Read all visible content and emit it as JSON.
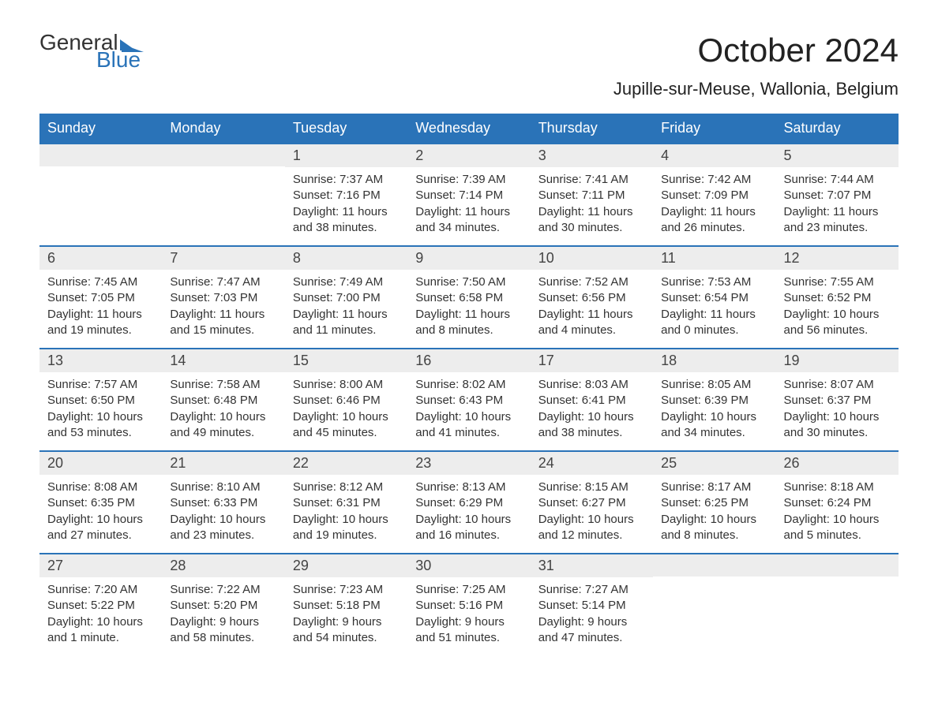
{
  "logo": {
    "top": "General",
    "bottom": "Blue"
  },
  "title": "October 2024",
  "location": "Jupille-sur-Meuse, Wallonia, Belgium",
  "header_bg": "#2a73b8",
  "header_fg": "#ffffff",
  "daynum_bg": "#ededed",
  "week_border": "#2a73b8",
  "day_names": [
    "Sunday",
    "Monday",
    "Tuesday",
    "Wednesday",
    "Thursday",
    "Friday",
    "Saturday"
  ],
  "weeks": [
    [
      {
        "day": "",
        "lines": []
      },
      {
        "day": "",
        "lines": []
      },
      {
        "day": "1",
        "lines": [
          "Sunrise: 7:37 AM",
          "Sunset: 7:16 PM",
          "Daylight: 11 hours and 38 minutes."
        ]
      },
      {
        "day": "2",
        "lines": [
          "Sunrise: 7:39 AM",
          "Sunset: 7:14 PM",
          "Daylight: 11 hours and 34 minutes."
        ]
      },
      {
        "day": "3",
        "lines": [
          "Sunrise: 7:41 AM",
          "Sunset: 7:11 PM",
          "Daylight: 11 hours and 30 minutes."
        ]
      },
      {
        "day": "4",
        "lines": [
          "Sunrise: 7:42 AM",
          "Sunset: 7:09 PM",
          "Daylight: 11 hours and 26 minutes."
        ]
      },
      {
        "day": "5",
        "lines": [
          "Sunrise: 7:44 AM",
          "Sunset: 7:07 PM",
          "Daylight: 11 hours and 23 minutes."
        ]
      }
    ],
    [
      {
        "day": "6",
        "lines": [
          "Sunrise: 7:45 AM",
          "Sunset: 7:05 PM",
          "Daylight: 11 hours and 19 minutes."
        ]
      },
      {
        "day": "7",
        "lines": [
          "Sunrise: 7:47 AM",
          "Sunset: 7:03 PM",
          "Daylight: 11 hours and 15 minutes."
        ]
      },
      {
        "day": "8",
        "lines": [
          "Sunrise: 7:49 AM",
          "Sunset: 7:00 PM",
          "Daylight: 11 hours and 11 minutes."
        ]
      },
      {
        "day": "9",
        "lines": [
          "Sunrise: 7:50 AM",
          "Sunset: 6:58 PM",
          "Daylight: 11 hours and 8 minutes."
        ]
      },
      {
        "day": "10",
        "lines": [
          "Sunrise: 7:52 AM",
          "Sunset: 6:56 PM",
          "Daylight: 11 hours and 4 minutes."
        ]
      },
      {
        "day": "11",
        "lines": [
          "Sunrise: 7:53 AM",
          "Sunset: 6:54 PM",
          "Daylight: 11 hours and 0 minutes."
        ]
      },
      {
        "day": "12",
        "lines": [
          "Sunrise: 7:55 AM",
          "Sunset: 6:52 PM",
          "Daylight: 10 hours and 56 minutes."
        ]
      }
    ],
    [
      {
        "day": "13",
        "lines": [
          "Sunrise: 7:57 AM",
          "Sunset: 6:50 PM",
          "Daylight: 10 hours and 53 minutes."
        ]
      },
      {
        "day": "14",
        "lines": [
          "Sunrise: 7:58 AM",
          "Sunset: 6:48 PM",
          "Daylight: 10 hours and 49 minutes."
        ]
      },
      {
        "day": "15",
        "lines": [
          "Sunrise: 8:00 AM",
          "Sunset: 6:46 PM",
          "Daylight: 10 hours and 45 minutes."
        ]
      },
      {
        "day": "16",
        "lines": [
          "Sunrise: 8:02 AM",
          "Sunset: 6:43 PM",
          "Daylight: 10 hours and 41 minutes."
        ]
      },
      {
        "day": "17",
        "lines": [
          "Sunrise: 8:03 AM",
          "Sunset: 6:41 PM",
          "Daylight: 10 hours and 38 minutes."
        ]
      },
      {
        "day": "18",
        "lines": [
          "Sunrise: 8:05 AM",
          "Sunset: 6:39 PM",
          "Daylight: 10 hours and 34 minutes."
        ]
      },
      {
        "day": "19",
        "lines": [
          "Sunrise: 8:07 AM",
          "Sunset: 6:37 PM",
          "Daylight: 10 hours and 30 minutes."
        ]
      }
    ],
    [
      {
        "day": "20",
        "lines": [
          "Sunrise: 8:08 AM",
          "Sunset: 6:35 PM",
          "Daylight: 10 hours and 27 minutes."
        ]
      },
      {
        "day": "21",
        "lines": [
          "Sunrise: 8:10 AM",
          "Sunset: 6:33 PM",
          "Daylight: 10 hours and 23 minutes."
        ]
      },
      {
        "day": "22",
        "lines": [
          "Sunrise: 8:12 AM",
          "Sunset: 6:31 PM",
          "Daylight: 10 hours and 19 minutes."
        ]
      },
      {
        "day": "23",
        "lines": [
          "Sunrise: 8:13 AM",
          "Sunset: 6:29 PM",
          "Daylight: 10 hours and 16 minutes."
        ]
      },
      {
        "day": "24",
        "lines": [
          "Sunrise: 8:15 AM",
          "Sunset: 6:27 PM",
          "Daylight: 10 hours and 12 minutes."
        ]
      },
      {
        "day": "25",
        "lines": [
          "Sunrise: 8:17 AM",
          "Sunset: 6:25 PM",
          "Daylight: 10 hours and 8 minutes."
        ]
      },
      {
        "day": "26",
        "lines": [
          "Sunrise: 8:18 AM",
          "Sunset: 6:24 PM",
          "Daylight: 10 hours and 5 minutes."
        ]
      }
    ],
    [
      {
        "day": "27",
        "lines": [
          "Sunrise: 7:20 AM",
          "Sunset: 5:22 PM",
          "Daylight: 10 hours and 1 minute."
        ]
      },
      {
        "day": "28",
        "lines": [
          "Sunrise: 7:22 AM",
          "Sunset: 5:20 PM",
          "Daylight: 9 hours and 58 minutes."
        ]
      },
      {
        "day": "29",
        "lines": [
          "Sunrise: 7:23 AM",
          "Sunset: 5:18 PM",
          "Daylight: 9 hours and 54 minutes."
        ]
      },
      {
        "day": "30",
        "lines": [
          "Sunrise: 7:25 AM",
          "Sunset: 5:16 PM",
          "Daylight: 9 hours and 51 minutes."
        ]
      },
      {
        "day": "31",
        "lines": [
          "Sunrise: 7:27 AM",
          "Sunset: 5:14 PM",
          "Daylight: 9 hours and 47 minutes."
        ]
      },
      {
        "day": "",
        "lines": []
      },
      {
        "day": "",
        "lines": []
      }
    ]
  ]
}
